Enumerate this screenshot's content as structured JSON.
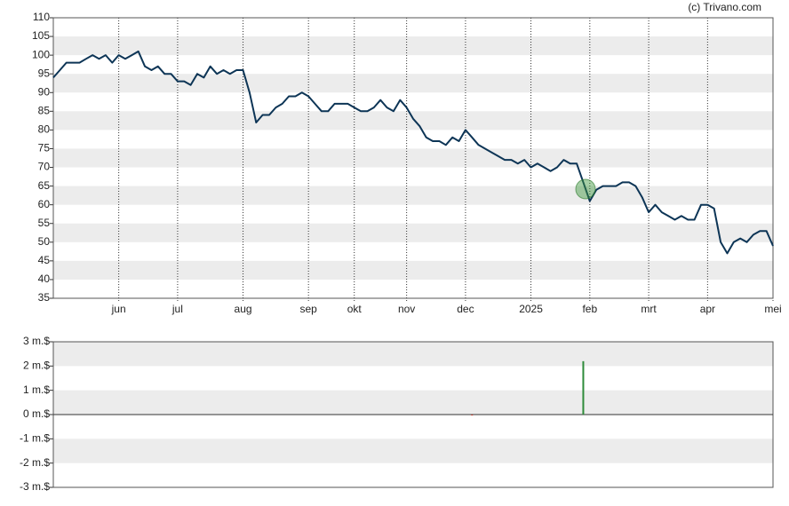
{
  "credit": "(c) Trivano.com",
  "chart_data": [
    {
      "type": "line",
      "color": "#0d3556",
      "bands": true,
      "ylim": [
        35,
        110
      ],
      "yticks": [
        35,
        40,
        45,
        50,
        55,
        60,
        65,
        70,
        75,
        80,
        85,
        90,
        95,
        100,
        105,
        110
      ],
      "categories": [
        null,
        null,
        null,
        null,
        null,
        null,
        null,
        null,
        null,
        null,
        "jun",
        null,
        null,
        null,
        null,
        null,
        null,
        null,
        null,
        "jul",
        null,
        null,
        null,
        null,
        null,
        null,
        null,
        null,
        null,
        "aug",
        null,
        null,
        null,
        null,
        null,
        null,
        null,
        null,
        null,
        "sep",
        null,
        null,
        null,
        null,
        null,
        null,
        "okt",
        null,
        null,
        null,
        null,
        null,
        null,
        null,
        "nov",
        null,
        null,
        null,
        null,
        null,
        null,
        null,
        null,
        "dec",
        null,
        null,
        null,
        null,
        null,
        null,
        null,
        null,
        null,
        "2025",
        null,
        null,
        null,
        null,
        null,
        null,
        null,
        null,
        "feb",
        null,
        null,
        null,
        null,
        null,
        null,
        null,
        null,
        "mrt",
        null,
        null,
        null,
        null,
        null,
        null,
        null,
        null,
        "apr",
        null,
        null,
        null,
        null,
        null,
        null,
        null,
        null,
        null,
        "mei"
      ],
      "values": [
        94,
        96,
        98,
        98,
        98,
        99,
        100,
        99,
        100,
        98,
        100,
        99,
        100,
        101,
        97,
        96,
        97,
        95,
        95,
        93,
        93,
        92,
        95,
        94,
        97,
        95,
        96,
        95,
        96,
        96,
        90,
        82,
        84,
        84,
        86,
        87,
        89,
        89,
        90,
        89,
        87,
        85,
        85,
        87,
        87,
        87,
        86,
        85,
        85,
        86,
        88,
        86,
        85,
        88,
        86,
        83,
        81,
        78,
        77,
        77,
        76,
        78,
        77,
        80,
        78,
        76,
        75,
        74,
        73,
        72,
        72,
        71,
        72,
        70,
        71,
        70,
        69,
        70,
        72,
        71,
        71,
        66,
        61,
        64,
        65,
        65,
        65,
        66,
        66,
        65,
        62,
        58,
        60,
        58,
        57,
        56,
        57,
        56,
        56,
        60,
        60,
        59,
        50,
        47,
        50,
        51,
        50,
        52,
        53,
        53,
        49
      ]
    },
    {
      "type": "bar",
      "positive_color": "#2e8b3a",
      "negative_color": "#c0392b",
      "bands": true,
      "ylim": [
        -3000000,
        3000000
      ],
      "yticks": [
        {
          "value": -3000000,
          "label": "-3 m.$"
        },
        {
          "value": -2000000,
          "label": "-2 m.$"
        },
        {
          "value": -1000000,
          "label": "-1 m.$"
        },
        {
          "value": 0,
          "label": "0 m.$"
        },
        {
          "value": 1000000,
          "label": "1 m.$"
        },
        {
          "value": 2000000,
          "label": "2 m.$"
        },
        {
          "value": 3000000,
          "label": "3 m.$"
        }
      ],
      "values": [
        null,
        null,
        null,
        null,
        null,
        null,
        null,
        null,
        null,
        null,
        null,
        null,
        null,
        null,
        null,
        null,
        null,
        null,
        null,
        null,
        null,
        null,
        null,
        null,
        null,
        null,
        null,
        null,
        null,
        null,
        null,
        null,
        null,
        null,
        null,
        null,
        null,
        null,
        null,
        null,
        null,
        null,
        null,
        null,
        null,
        null,
        null,
        null,
        null,
        null,
        null,
        null,
        null,
        null,
        null,
        null,
        null,
        null,
        null,
        null,
        null,
        null,
        null,
        null,
        -20000,
        null,
        null,
        null,
        null,
        null,
        null,
        null,
        null,
        null,
        null,
        null,
        null,
        null,
        null,
        null,
        null,
        2200000,
        null,
        null,
        null,
        null,
        null,
        null,
        null,
        null,
        null,
        null,
        null,
        null,
        null,
        null,
        null,
        null,
        null,
        null,
        null,
        null,
        null,
        null,
        null,
        null,
        null,
        null,
        null,
        null,
        null
      ]
    }
  ]
}
